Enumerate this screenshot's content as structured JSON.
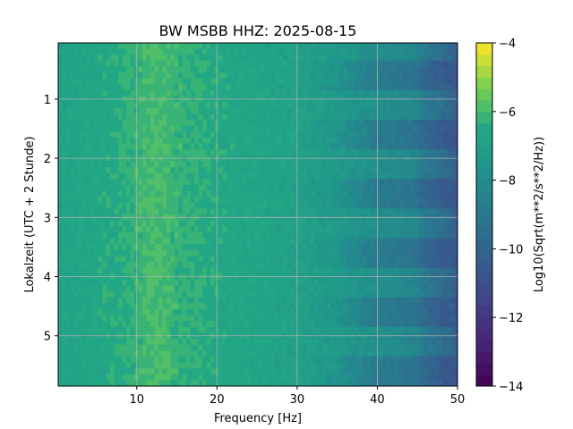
{
  "chart_data": {
    "type": "heatmap",
    "title": "BW MSBB  HHZ: 2025-08-15",
    "xlabel": "Frequency [Hz]",
    "ylabel": "Lokalzeit (UTC + 2 Stunde)",
    "xlim": [
      0.2,
      50
    ],
    "ylim": [
      0.05,
      5.85
    ],
    "y_inverted": true,
    "grid": true,
    "x_ticks": [
      10,
      20,
      30,
      40,
      50
    ],
    "x_tick_labels": [
      "10",
      "20",
      "30",
      "40",
      "50"
    ],
    "y_ticks": [
      1,
      2,
      3,
      4,
      5
    ],
    "y_tick_labels": [
      "1",
      "2",
      "3",
      "4",
      "5"
    ],
    "colorbar": {
      "label": "Log10(Sqrt(m**2/s**2/Hz))",
      "range": [
        -14,
        -4
      ],
      "ticks": [
        -14,
        -12,
        -10,
        -8,
        -6,
        -4
      ],
      "tick_labels": [
        "−14",
        "−12",
        "−10",
        "−8",
        "−6",
        "−4"
      ],
      "colormap": "viridis",
      "levels": 30
    },
    "profile": {
      "frequency_hz": [
        0.2,
        5,
        10,
        12,
        15,
        20,
        25,
        30,
        35,
        38,
        40,
        42,
        44,
        45,
        46,
        48,
        50
      ],
      "log_psd_stripe_a": [
        -6.8,
        -6.6,
        -6.2,
        -5.9,
        -6.2,
        -6.5,
        -6.7,
        -6.9,
        -7.3,
        -7.6,
        -7.8,
        -8.0,
        -8.2,
        -8.4,
        -8.9,
        -9.4,
        -10.2
      ],
      "log_psd_stripe_b": [
        -6.8,
        -6.6,
        -6.2,
        -5.9,
        -6.2,
        -6.5,
        -6.7,
        -6.9,
        -7.6,
        -8.4,
        -8.8,
        -9.0,
        -9.2,
        -9.4,
        -9.8,
        -10.4,
        -10.6
      ]
    },
    "stripe_period_hours": 0.5
  }
}
